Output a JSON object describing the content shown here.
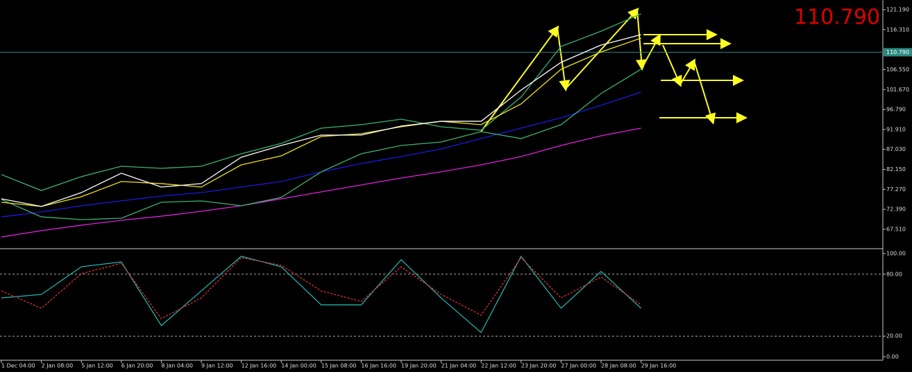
{
  "chart_data": [
    {
      "type": "line",
      "last_price": {
        "value": 110.79,
        "label": "110.790"
      },
      "ylim": [
        62.94,
        123.56
      ],
      "yticks": [
        {
          "value": 121.19,
          "label": "121.190"
        },
        {
          "value": 116.31,
          "label": "116.310"
        },
        {
          "value": 106.55,
          "label": "106.550"
        },
        {
          "value": 101.67,
          "label": "101.670"
        },
        {
          "value": 96.79,
          "label": "96.790"
        },
        {
          "value": 91.91,
          "label": "91.910"
        },
        {
          "value": 87.03,
          "label": "87.030"
        },
        {
          "value": 82.15,
          "label": "82.150"
        },
        {
          "value": 77.27,
          "label": "77.270"
        },
        {
          "value": 72.39,
          "label": "72.390"
        },
        {
          "value": 67.51,
          "label": "67.510"
        }
      ],
      "series": [
        {
          "color": "#e020e0",
          "values": [
            65.64,
            67.17,
            68.52,
            69.71,
            70.72,
            71.91,
            73.27,
            74.96,
            76.65,
            78.35,
            80.04,
            81.56,
            83.26,
            85.29,
            88.0,
            90.37,
            92.23
          ]
        },
        {
          "color": "#1a1ae0",
          "values": [
            70.55,
            71.74,
            73.27,
            74.45,
            75.64,
            76.48,
            77.84,
            79.19,
            81.56,
            83.59,
            85.29,
            87.15,
            89.69,
            92.23,
            94.77,
            97.82,
            101.04
          ]
        },
        {
          "color": "#3cb371",
          "values": [
            80.88,
            76.99,
            80.38,
            82.92,
            82.41,
            82.92,
            85.97,
            88.51,
            92.23,
            93.08,
            94.43,
            92.57,
            91.72,
            99.85,
            112.21,
            115.94,
            120.17
          ]
        },
        {
          "color": "#3cb371",
          "values": [
            74.79,
            70.55,
            69.88,
            70.22,
            74.11,
            74.45,
            73.27,
            75.3,
            81.56,
            85.97,
            88.0,
            88.84,
            91.38,
            89.69,
            93.08,
            100.7,
            106.63
          ]
        },
        {
          "color": "#f0e020",
          "values": [
            74.11,
            73.1,
            75.47,
            79.19,
            78.68,
            77.84,
            83.26,
            85.46,
            90.2,
            90.88,
            92.57,
            93.92,
            93.08,
            98.16,
            106.63,
            110.86,
            114.25
          ]
        },
        {
          "color": "#ffffff",
          "values": [
            74.96,
            73.1,
            76.48,
            81.22,
            77.84,
            78.68,
            85.12,
            88.0,
            90.54,
            90.54,
            92.74,
            93.92,
            93.92,
            101.55,
            108.32,
            112.55,
            115.09
          ]
        }
      ]
    },
    {
      "type": "line",
      "categories": [
        "1 Dec 04:00",
        "2 Jan 08:00",
        "5 Jan 12:00",
        "6 Jan 20:00",
        "8 Jan 04:00",
        "9 Jan 12:00",
        "12 Jan 16:00",
        "14 Jan 00:00",
        "15 Jan 08:00",
        "16 Jan 16:00",
        "19 Jan 20:00",
        "21 Jan 04:00",
        "22 Jan 12:00",
        "23 Jan 20:00",
        "27 Jan 00:00",
        "28 Jan 08:00",
        "29 Jan 16:00"
      ],
      "ylim": [
        -3.36,
        104.03
      ],
      "yticks": [
        {
          "value": 100,
          "label": "100.00"
        },
        {
          "value": 80,
          "label": "80.00"
        },
        {
          "value": 20,
          "label": "20.00"
        },
        {
          "value": 0,
          "label": "0.00"
        }
      ],
      "levels": [
        80,
        20
      ],
      "series": [
        {
          "color": "#20b2aa",
          "values": [
            57.0,
            60.4,
            87.2,
            91.9,
            30.2,
            63.8,
            97.3,
            87.2,
            50.3,
            50.3,
            94.0,
            57.0,
            23.5,
            97.3,
            47.0,
            82.6,
            47.0
          ]
        },
        {
          "color": "#e03030",
          "dash": true,
          "values": [
            63.8,
            47.0,
            80.5,
            90.6,
            36.9,
            57.0,
            96.0,
            88.6,
            63.8,
            53.7,
            87.2,
            60.4,
            40.3,
            96.0,
            57.0,
            77.2,
            50.3
          ]
        }
      ]
    }
  ]
}
